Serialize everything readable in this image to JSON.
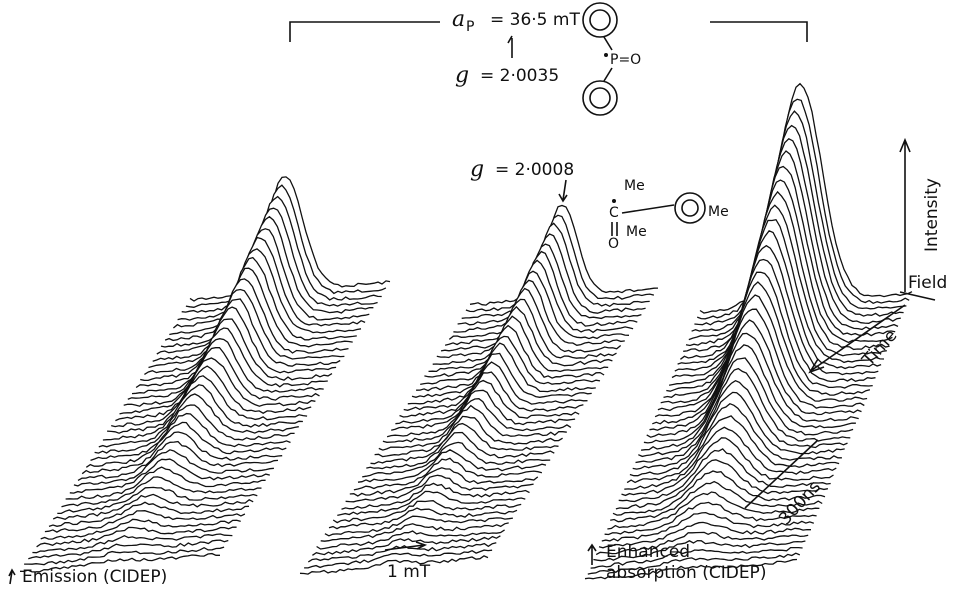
{
  "header": {
    "coupling": {
      "symbol": "a",
      "subscript": "P",
      "text": "= 36·5 mT"
    }
  },
  "annotations": {
    "g_phosphinoyl": {
      "symbol": "g",
      "text": "= 2·0035"
    },
    "g_benzoyl": {
      "symbol": "g",
      "text": "= 2·0008"
    }
  },
  "structures": {
    "phosphinoyl": {
      "label": "P=O"
    },
    "benzoyl": {
      "carbon": "C",
      "oxygen": "O",
      "methyls": [
        "Me",
        "Me",
        "Me"
      ]
    }
  },
  "axes": {
    "intensity": "Intensity",
    "field": "Field",
    "time": "Time",
    "time_scale": "300ns",
    "field_scale": "1 mT"
  },
  "labels": {
    "emission": "Emission (CIDEP)",
    "enhanced": [
      "Enhanced",
      "absorption (CIDEP)"
    ]
  }
}
